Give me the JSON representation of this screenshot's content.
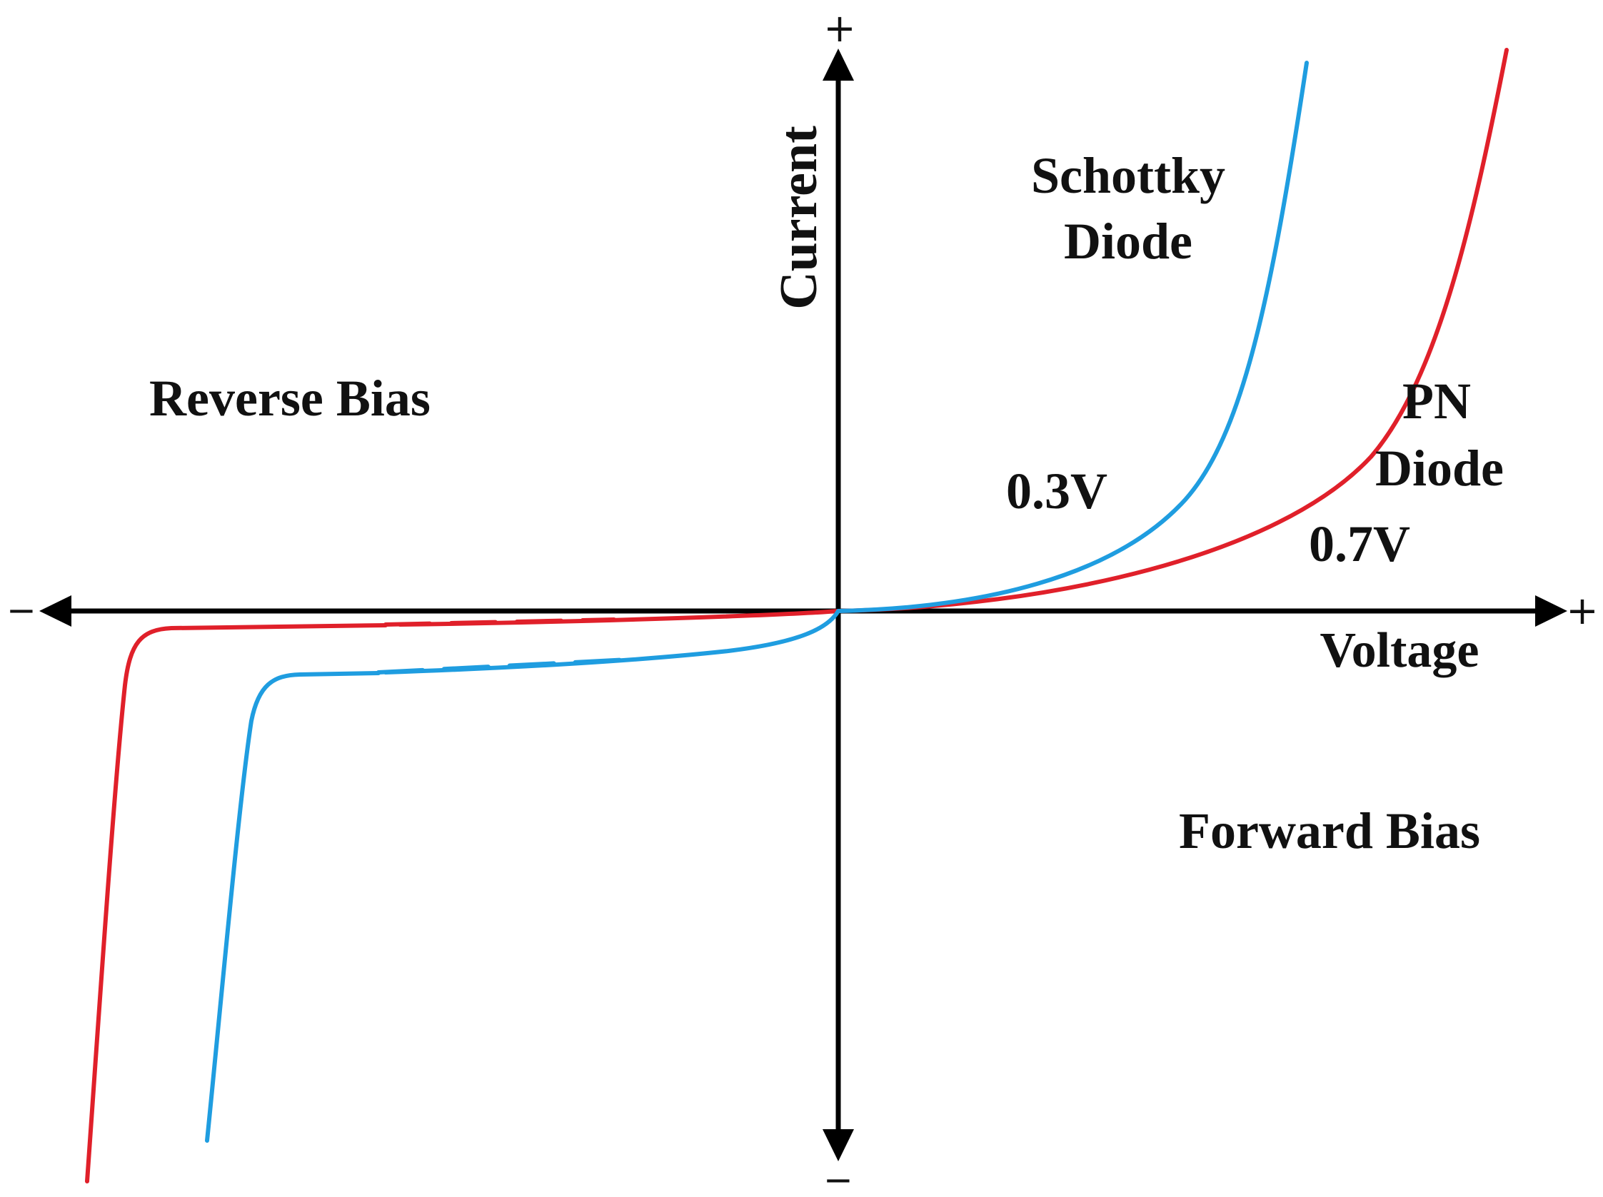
{
  "axes": {
    "x_label": "Voltage",
    "y_label": "Current",
    "x_plus": "+",
    "x_minus": "−",
    "y_plus": "+",
    "y_minus": "−",
    "color": "#000000"
  },
  "regions": {
    "reverse": "Reverse Bias",
    "forward": "Forward Bias"
  },
  "curves": {
    "schottky": {
      "label_line1": "Schottky",
      "label_line2": "Diode",
      "threshold": "0.3V",
      "color": "#1f9de0"
    },
    "pn": {
      "label_line1": "PN",
      "label_line2": "Diode",
      "threshold": "0.7V",
      "color": "#e0202a"
    }
  }
}
